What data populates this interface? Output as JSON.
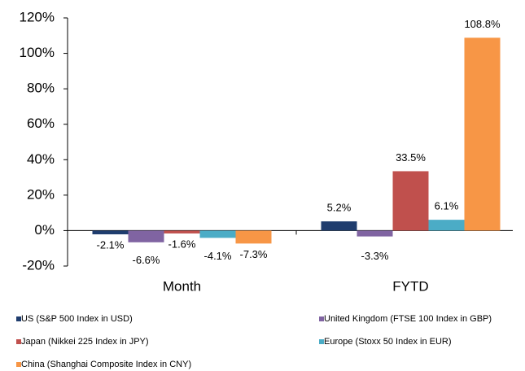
{
  "chart_data": {
    "type": "bar",
    "categories": [
      "Month",
      "FYTD"
    ],
    "series": [
      {
        "name": "US (S&P 500 Index in USD)",
        "color": "#1f3d6e",
        "values": [
          -2.1,
          5.2
        ],
        "value_labels": [
          "-2.1%",
          "5.2%"
        ]
      },
      {
        "name": "United Kingdom (FTSE 100 Index in GBP)",
        "color": "#8064a2",
        "values": [
          -6.6,
          -3.3
        ],
        "value_labels": [
          "-6.6%",
          "-3.3%"
        ]
      },
      {
        "name": "Japan (Nikkei 225 Index in JPY)",
        "color": "#c0504d",
        "values": [
          -1.6,
          33.5
        ],
        "value_labels": [
          "-1.6%",
          "33.5%"
        ]
      },
      {
        "name": "Europe (Stoxx 50 Index in EUR)",
        "color": "#4bacc6",
        "values": [
          -4.1,
          6.1
        ],
        "value_labels": [
          "-4.1%",
          "6.1%"
        ]
      },
      {
        "name": "China (Shanghai Composite Index in CNY)",
        "color": "#f79646",
        "values": [
          -7.3,
          108.8
        ],
        "value_labels": [
          "-7.3%",
          "108.8%"
        ]
      }
    ],
    "ylim": [
      -20,
      120
    ],
    "yticks": [
      {
        "value": -20,
        "label": "-20%"
      },
      {
        "value": 0,
        "label": "0%"
      },
      {
        "value": 20,
        "label": "20%"
      },
      {
        "value": 40,
        "label": "40%"
      },
      {
        "value": 60,
        "label": "60%"
      },
      {
        "value": 80,
        "label": "80%"
      },
      {
        "value": 100,
        "label": "100%"
      },
      {
        "value": 120,
        "label": "120%"
      }
    ],
    "legend": "bottom"
  }
}
